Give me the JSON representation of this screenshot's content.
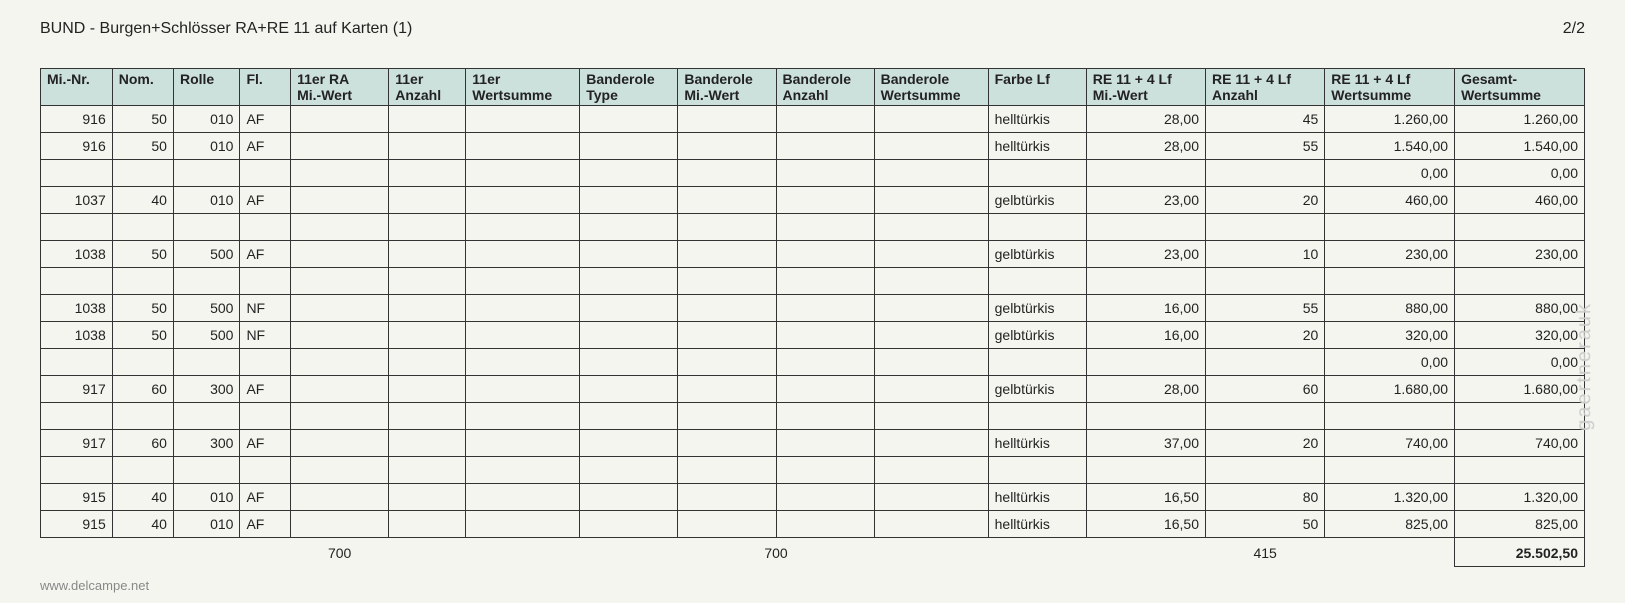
{
  "title": "BUND - Burgen+Schlösser RA+RE 11 auf Karten (1)",
  "pagenum": "2/2",
  "columns": [
    "Mi.-Nr.",
    "Nom.",
    "Rolle",
    "Fl.",
    "11er RA Mi.-Wert",
    "11er Anzahl",
    "11er Wertsumme",
    "Banderole Type",
    "Banderole Mi.-Wert",
    "Banderole Anzahl",
    "Banderole Wertsumme",
    "Farbe Lf",
    "RE 11 + 4 Lf Mi.-Wert",
    "RE 11 + 4 Lf Anzahl",
    "RE 11 + 4 Lf Wertsumme",
    "Gesamt-Wertsumme"
  ],
  "rows": [
    {
      "mi": "916",
      "nom": "50",
      "rolle": "010",
      "fl": "AF",
      "ra": "",
      "anz11": "",
      "ws11": "",
      "btype": "",
      "bmi": "",
      "banz": "",
      "bws": "",
      "farbe": "helltürkis",
      "remi": "28,00",
      "reanz": "45",
      "rews": "1.260,00",
      "gesamt": "1.260,00"
    },
    {
      "mi": "916",
      "nom": "50",
      "rolle": "010",
      "fl": "AF",
      "ra": "",
      "anz11": "",
      "ws11": "",
      "btype": "",
      "bmi": "",
      "banz": "",
      "bws": "",
      "farbe": "helltürkis",
      "remi": "28,00",
      "reanz": "55",
      "rews": "1.540,00",
      "gesamt": "1.540,00"
    },
    {
      "mi": "",
      "nom": "",
      "rolle": "",
      "fl": "",
      "ra": "",
      "anz11": "",
      "ws11": "",
      "btype": "",
      "bmi": "",
      "banz": "",
      "bws": "",
      "farbe": "",
      "remi": "",
      "reanz": "",
      "rews": "0,00",
      "gesamt": "0,00"
    },
    {
      "mi": "1037",
      "nom": "40",
      "rolle": "010",
      "fl": "AF",
      "ra": "",
      "anz11": "",
      "ws11": "",
      "btype": "",
      "bmi": "",
      "banz": "",
      "bws": "",
      "farbe": "gelbtürkis",
      "remi": "23,00",
      "reanz": "20",
      "rews": "460,00",
      "gesamt": "460,00"
    },
    {
      "mi": "",
      "nom": "",
      "rolle": "",
      "fl": "",
      "ra": "",
      "anz11": "",
      "ws11": "",
      "btype": "",
      "bmi": "",
      "banz": "",
      "bws": "",
      "farbe": "",
      "remi": "",
      "reanz": "",
      "rews": "",
      "gesamt": ""
    },
    {
      "mi": "1038",
      "nom": "50",
      "rolle": "500",
      "fl": "AF",
      "ra": "",
      "anz11": "",
      "ws11": "",
      "btype": "",
      "bmi": "",
      "banz": "",
      "bws": "",
      "farbe": "gelbtürkis",
      "remi": "23,00",
      "reanz": "10",
      "rews": "230,00",
      "gesamt": "230,00"
    },
    {
      "mi": "",
      "nom": "",
      "rolle": "",
      "fl": "",
      "ra": "",
      "anz11": "",
      "ws11": "",
      "btype": "",
      "bmi": "",
      "banz": "",
      "bws": "",
      "farbe": "",
      "remi": "",
      "reanz": "",
      "rews": "",
      "gesamt": ""
    },
    {
      "mi": "1038",
      "nom": "50",
      "rolle": "500",
      "fl": "NF",
      "ra": "",
      "anz11": "",
      "ws11": "",
      "btype": "",
      "bmi": "",
      "banz": "",
      "bws": "",
      "farbe": "gelbtürkis",
      "remi": "16,00",
      "reanz": "55",
      "rews": "880,00",
      "gesamt": "880,00"
    },
    {
      "mi": "1038",
      "nom": "50",
      "rolle": "500",
      "fl": "NF",
      "ra": "",
      "anz11": "",
      "ws11": "",
      "btype": "",
      "bmi": "",
      "banz": "",
      "bws": "",
      "farbe": "gelbtürkis",
      "remi": "16,00",
      "reanz": "20",
      "rews": "320,00",
      "gesamt": "320,00"
    },
    {
      "mi": "",
      "nom": "",
      "rolle": "",
      "fl": "",
      "ra": "",
      "anz11": "",
      "ws11": "",
      "btype": "",
      "bmi": "",
      "banz": "",
      "bws": "",
      "farbe": "",
      "remi": "",
      "reanz": "",
      "rews": "0,00",
      "gesamt": "0,00"
    },
    {
      "mi": "917",
      "nom": "60",
      "rolle": "300",
      "fl": "AF",
      "ra": "",
      "anz11": "",
      "ws11": "",
      "btype": "",
      "bmi": "",
      "banz": "",
      "bws": "",
      "farbe": "gelbtürkis",
      "remi": "28,00",
      "reanz": "60",
      "rews": "1.680,00",
      "gesamt": "1.680,00"
    },
    {
      "mi": "",
      "nom": "",
      "rolle": "",
      "fl": "",
      "ra": "",
      "anz11": "",
      "ws11": "",
      "btype": "",
      "bmi": "",
      "banz": "",
      "bws": "",
      "farbe": "",
      "remi": "",
      "reanz": "",
      "rews": "",
      "gesamt": ""
    },
    {
      "mi": "917",
      "nom": "60",
      "rolle": "300",
      "fl": "AF",
      "ra": "",
      "anz11": "",
      "ws11": "",
      "btype": "",
      "bmi": "",
      "banz": "",
      "bws": "",
      "farbe": "helltürkis",
      "remi": "37,00",
      "reanz": "20",
      "rews": "740,00",
      "gesamt": "740,00"
    },
    {
      "mi": "",
      "nom": "",
      "rolle": "",
      "fl": "",
      "ra": "",
      "anz11": "",
      "ws11": "",
      "btype": "",
      "bmi": "",
      "banz": "",
      "bws": "",
      "farbe": "",
      "remi": "",
      "reanz": "",
      "rews": "",
      "gesamt": ""
    },
    {
      "mi": "915",
      "nom": "40",
      "rolle": "010",
      "fl": "AF",
      "ra": "",
      "anz11": "",
      "ws11": "",
      "btype": "",
      "bmi": "",
      "banz": "",
      "bws": "",
      "farbe": "helltürkis",
      "remi": "16,50",
      "reanz": "80",
      "rews": "1.320,00",
      "gesamt": "1.320,00"
    },
    {
      "mi": "915",
      "nom": "40",
      "rolle": "010",
      "fl": "AF",
      "ra": "",
      "anz11": "",
      "ws11": "",
      "btype": "",
      "bmi": "",
      "banz": "",
      "bws": "",
      "farbe": "helltürkis",
      "remi": "16,50",
      "reanz": "50",
      "rews": "825,00",
      "gesamt": "825,00"
    }
  ],
  "footer": {
    "sum11": "700",
    "sumBand": "700",
    "sumRe": "415",
    "total": "25.502,50"
  },
  "watermark1": "www.delcampe.net",
  "watermark2": "gaertnerauk",
  "col_widths": [
    "55",
    "45",
    "50",
    "35",
    "80",
    "60",
    "95",
    "80",
    "80",
    "80",
    "95",
    "80",
    "100",
    "100",
    "110",
    "110"
  ],
  "header_bg": "#cce0dc",
  "page_bg": "#f5f5f0"
}
